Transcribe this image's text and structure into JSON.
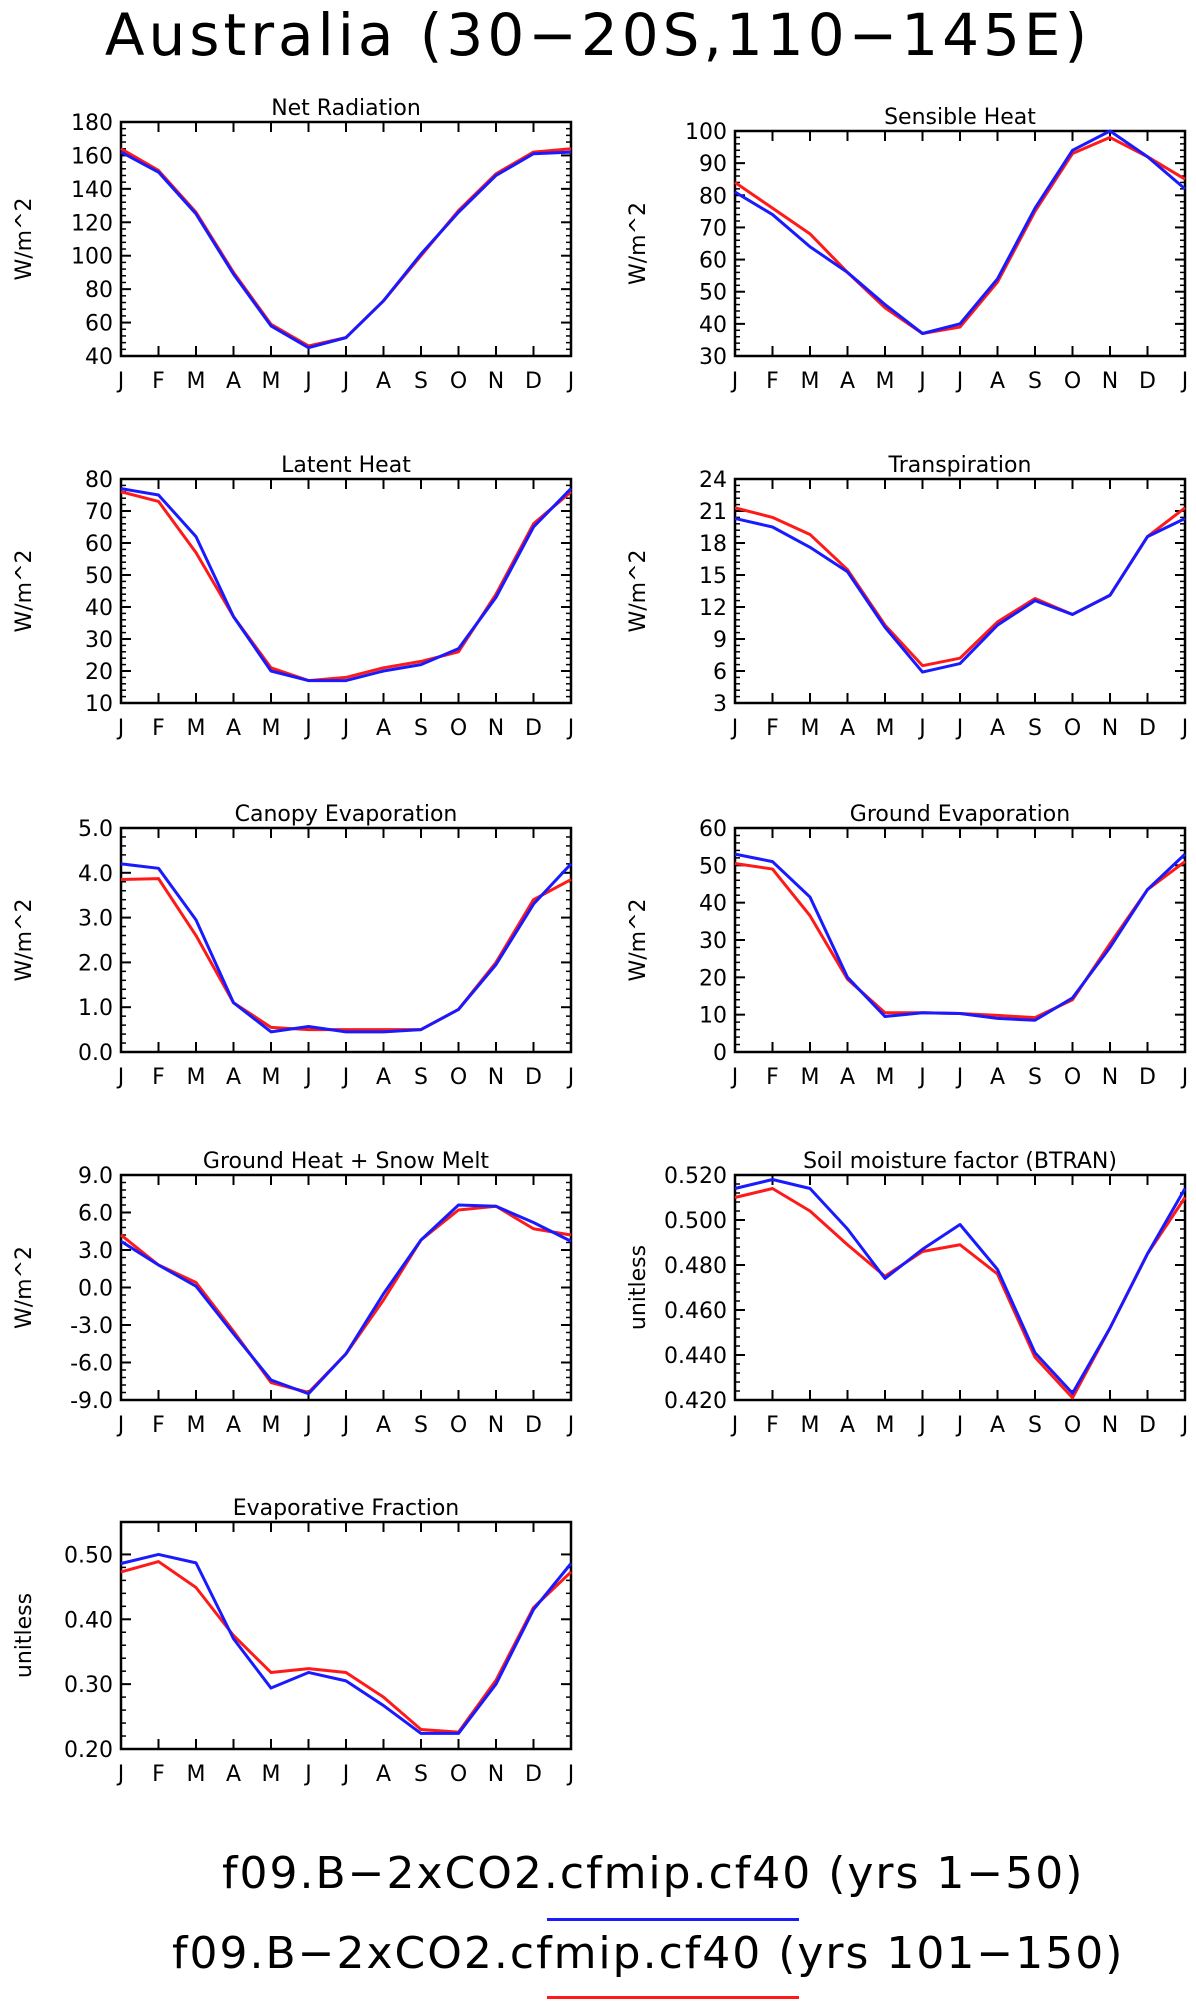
{
  "title": "Australia (30−20S,110−145E)",
  "months": [
    "J",
    "F",
    "M",
    "A",
    "M",
    "J",
    "J",
    "A",
    "S",
    "O",
    "N",
    "D",
    "J"
  ],
  "legend": [
    {
      "label": "f09.B−2xCO2.cfmip.cf40 (yrs 1−50)",
      "color": "#1a1aff"
    },
    {
      "label": "f09.B−2xCO2.cfmip.cf40 (yrs 101−150)",
      "color": "#ff1a1a"
    }
  ],
  "chart_data": [
    {
      "type": "line",
      "title": "Net Radiation",
      "ylabel": "W/m^2",
      "ylim": [
        40,
        180
      ],
      "yticks": [
        "40",
        "60",
        "80",
        "100",
        "120",
        "140",
        "160",
        "180"
      ],
      "yticks_val": [
        40,
        60,
        80,
        100,
        120,
        140,
        160,
        180
      ],
      "series": [
        {
          "values": [
            162,
            150,
            125,
            89,
            58,
            45,
            51,
            73,
            101,
            126,
            148,
            161,
            162
          ]
        },
        {
          "values": [
            164,
            151,
            126,
            90,
            59,
            46,
            51,
            73,
            100,
            127,
            149,
            162,
            164
          ]
        }
      ]
    },
    {
      "type": "line",
      "title": "Sensible Heat",
      "ylabel": "W/m^2",
      "ylim": [
        30,
        100
      ],
      "yticks": [
        "30",
        "40",
        "50",
        "60",
        "70",
        "80",
        "90",
        "100"
      ],
      "yticks_val": [
        30,
        40,
        50,
        60,
        70,
        80,
        90,
        100
      ],
      "series": [
        {
          "values": [
            81,
            74,
            64,
            56,
            46,
            37,
            40,
            54,
            76,
            94,
            100,
            92,
            82
          ]
        },
        {
          "values": [
            84,
            76,
            68,
            56,
            45,
            37,
            39,
            53,
            75,
            93,
            98,
            92,
            85
          ]
        }
      ]
    },
    {
      "type": "line",
      "title": "Latent Heat",
      "ylabel": "W/m^2",
      "ylim": [
        10,
        80
      ],
      "yticks": [
        "10",
        "20",
        "30",
        "40",
        "50",
        "60",
        "70",
        "80"
      ],
      "yticks_val": [
        10,
        20,
        30,
        40,
        50,
        60,
        70,
        80
      ],
      "series": [
        {
          "values": [
            77,
            75,
            62,
            37,
            20,
            17,
            17,
            20,
            22,
            27,
            43,
            65,
            77
          ]
        },
        {
          "values": [
            76,
            73,
            57,
            37,
            21,
            17,
            18,
            21,
            23,
            26,
            44,
            66,
            76
          ]
        }
      ]
    },
    {
      "type": "line",
      "title": "Transpiration",
      "ylabel": "W/m^2",
      "ylim": [
        3,
        24
      ],
      "yticks": [
        "3",
        "6",
        "9",
        "12",
        "15",
        "18",
        "21",
        "24"
      ],
      "yticks_val": [
        3,
        6,
        9,
        12,
        15,
        18,
        21,
        24
      ],
      "series": [
        {
          "values": [
            20.3,
            19.5,
            17.6,
            15.3,
            10.1,
            5.9,
            6.7,
            10.3,
            12.6,
            11.3,
            13.1,
            18.6,
            20.3
          ]
        },
        {
          "values": [
            21.3,
            20.4,
            18.8,
            15.5,
            10.3,
            6.5,
            7.2,
            10.6,
            12.8,
            11.3,
            13.1,
            18.6,
            21.3
          ]
        }
      ]
    },
    {
      "type": "line",
      "title": "Canopy Evaporation",
      "ylabel": "W/m^2",
      "ylim": [
        0.0,
        5.0
      ],
      "yticks": [
        "0.0",
        "1.0",
        "2.0",
        "3.0",
        "4.0",
        "5.0"
      ],
      "yticks_val": [
        0,
        1,
        2,
        3,
        4,
        5
      ],
      "series": [
        {
          "values": [
            4.2,
            4.1,
            2.95,
            1.1,
            0.45,
            0.57,
            0.45,
            0.45,
            0.5,
            0.95,
            1.95,
            3.3,
            4.2
          ]
        },
        {
          "values": [
            3.85,
            3.87,
            2.6,
            1.1,
            0.55,
            0.5,
            0.5,
            0.5,
            0.5,
            0.95,
            2.0,
            3.4,
            3.85
          ]
        }
      ]
    },
    {
      "type": "line",
      "title": "Ground Evaporation",
      "ylabel": "W/m^2",
      "ylim": [
        0,
        60
      ],
      "yticks": [
        "0",
        "10",
        "20",
        "30",
        "40",
        "50",
        "60"
      ],
      "yticks_val": [
        0,
        10,
        20,
        30,
        40,
        50,
        60
      ],
      "series": [
        {
          "values": [
            53,
            51,
            41.5,
            20,
            9.5,
            10.5,
            10.3,
            9,
            8.5,
            14.5,
            28,
            43.5,
            53
          ]
        },
        {
          "values": [
            50.5,
            49,
            36.5,
            19.5,
            10.5,
            10.5,
            10.3,
            9.8,
            9.2,
            14,
            29,
            43.5,
            51
          ]
        }
      ]
    },
    {
      "type": "line",
      "title": "Ground Heat + Snow Melt",
      "ylabel": "W/m^2",
      "ylim": [
        -9.0,
        9.0
      ],
      "yticks": [
        "-9.0",
        "-6.0",
        "-3.0",
        "0.0",
        "3.0",
        "6.0",
        "9.0"
      ],
      "yticks_val": [
        -9,
        -6,
        -3,
        0,
        3,
        6,
        9
      ],
      "series": [
        {
          "values": [
            3.7,
            1.8,
            0.1,
            -3.7,
            -7.4,
            -8.5,
            -5.3,
            -0.5,
            3.8,
            6.6,
            6.5,
            5.2,
            3.7
          ]
        },
        {
          "values": [
            4.2,
            1.8,
            0.4,
            -3.5,
            -7.6,
            -8.4,
            -5.3,
            -1.0,
            3.8,
            6.2,
            6.5,
            4.7,
            4.2
          ]
        }
      ]
    },
    {
      "type": "line",
      "title": "Soil moisture factor (BTRAN)",
      "ylabel": "unitless",
      "ylim": [
        0.42,
        0.52
      ],
      "yticks": [
        "0.420",
        "0.440",
        "0.460",
        "0.480",
        "0.500",
        "0.520"
      ],
      "yticks_val": [
        0.42,
        0.44,
        0.46,
        0.48,
        0.5,
        0.52
      ],
      "series": [
        {
          "values": [
            0.514,
            0.518,
            0.514,
            0.496,
            0.474,
            0.487,
            0.498,
            0.478,
            0.441,
            0.423,
            0.452,
            0.485,
            0.514
          ]
        },
        {
          "values": [
            0.51,
            0.514,
            0.504,
            0.489,
            0.475,
            0.486,
            0.489,
            0.476,
            0.439,
            0.421,
            0.452,
            0.485,
            0.51
          ]
        }
      ]
    },
    {
      "type": "line",
      "title": "Evaporative Fraction",
      "ylabel": "unitless",
      "ylim": [
        0.2,
        0.55
      ],
      "yticks": [
        "0.20",
        "0.30",
        "0.40",
        "0.50"
      ],
      "yticks_val": [
        0.2,
        0.3,
        0.4,
        0.5
      ],
      "series": [
        {
          "values": [
            0.486,
            0.5,
            0.487,
            0.37,
            0.294,
            0.318,
            0.305,
            0.267,
            0.224,
            0.224,
            0.3,
            0.415,
            0.486
          ]
        },
        {
          "values": [
            0.473,
            0.489,
            0.449,
            0.375,
            0.318,
            0.324,
            0.318,
            0.28,
            0.23,
            0.226,
            0.306,
            0.418,
            0.473
          ]
        }
      ]
    }
  ]
}
